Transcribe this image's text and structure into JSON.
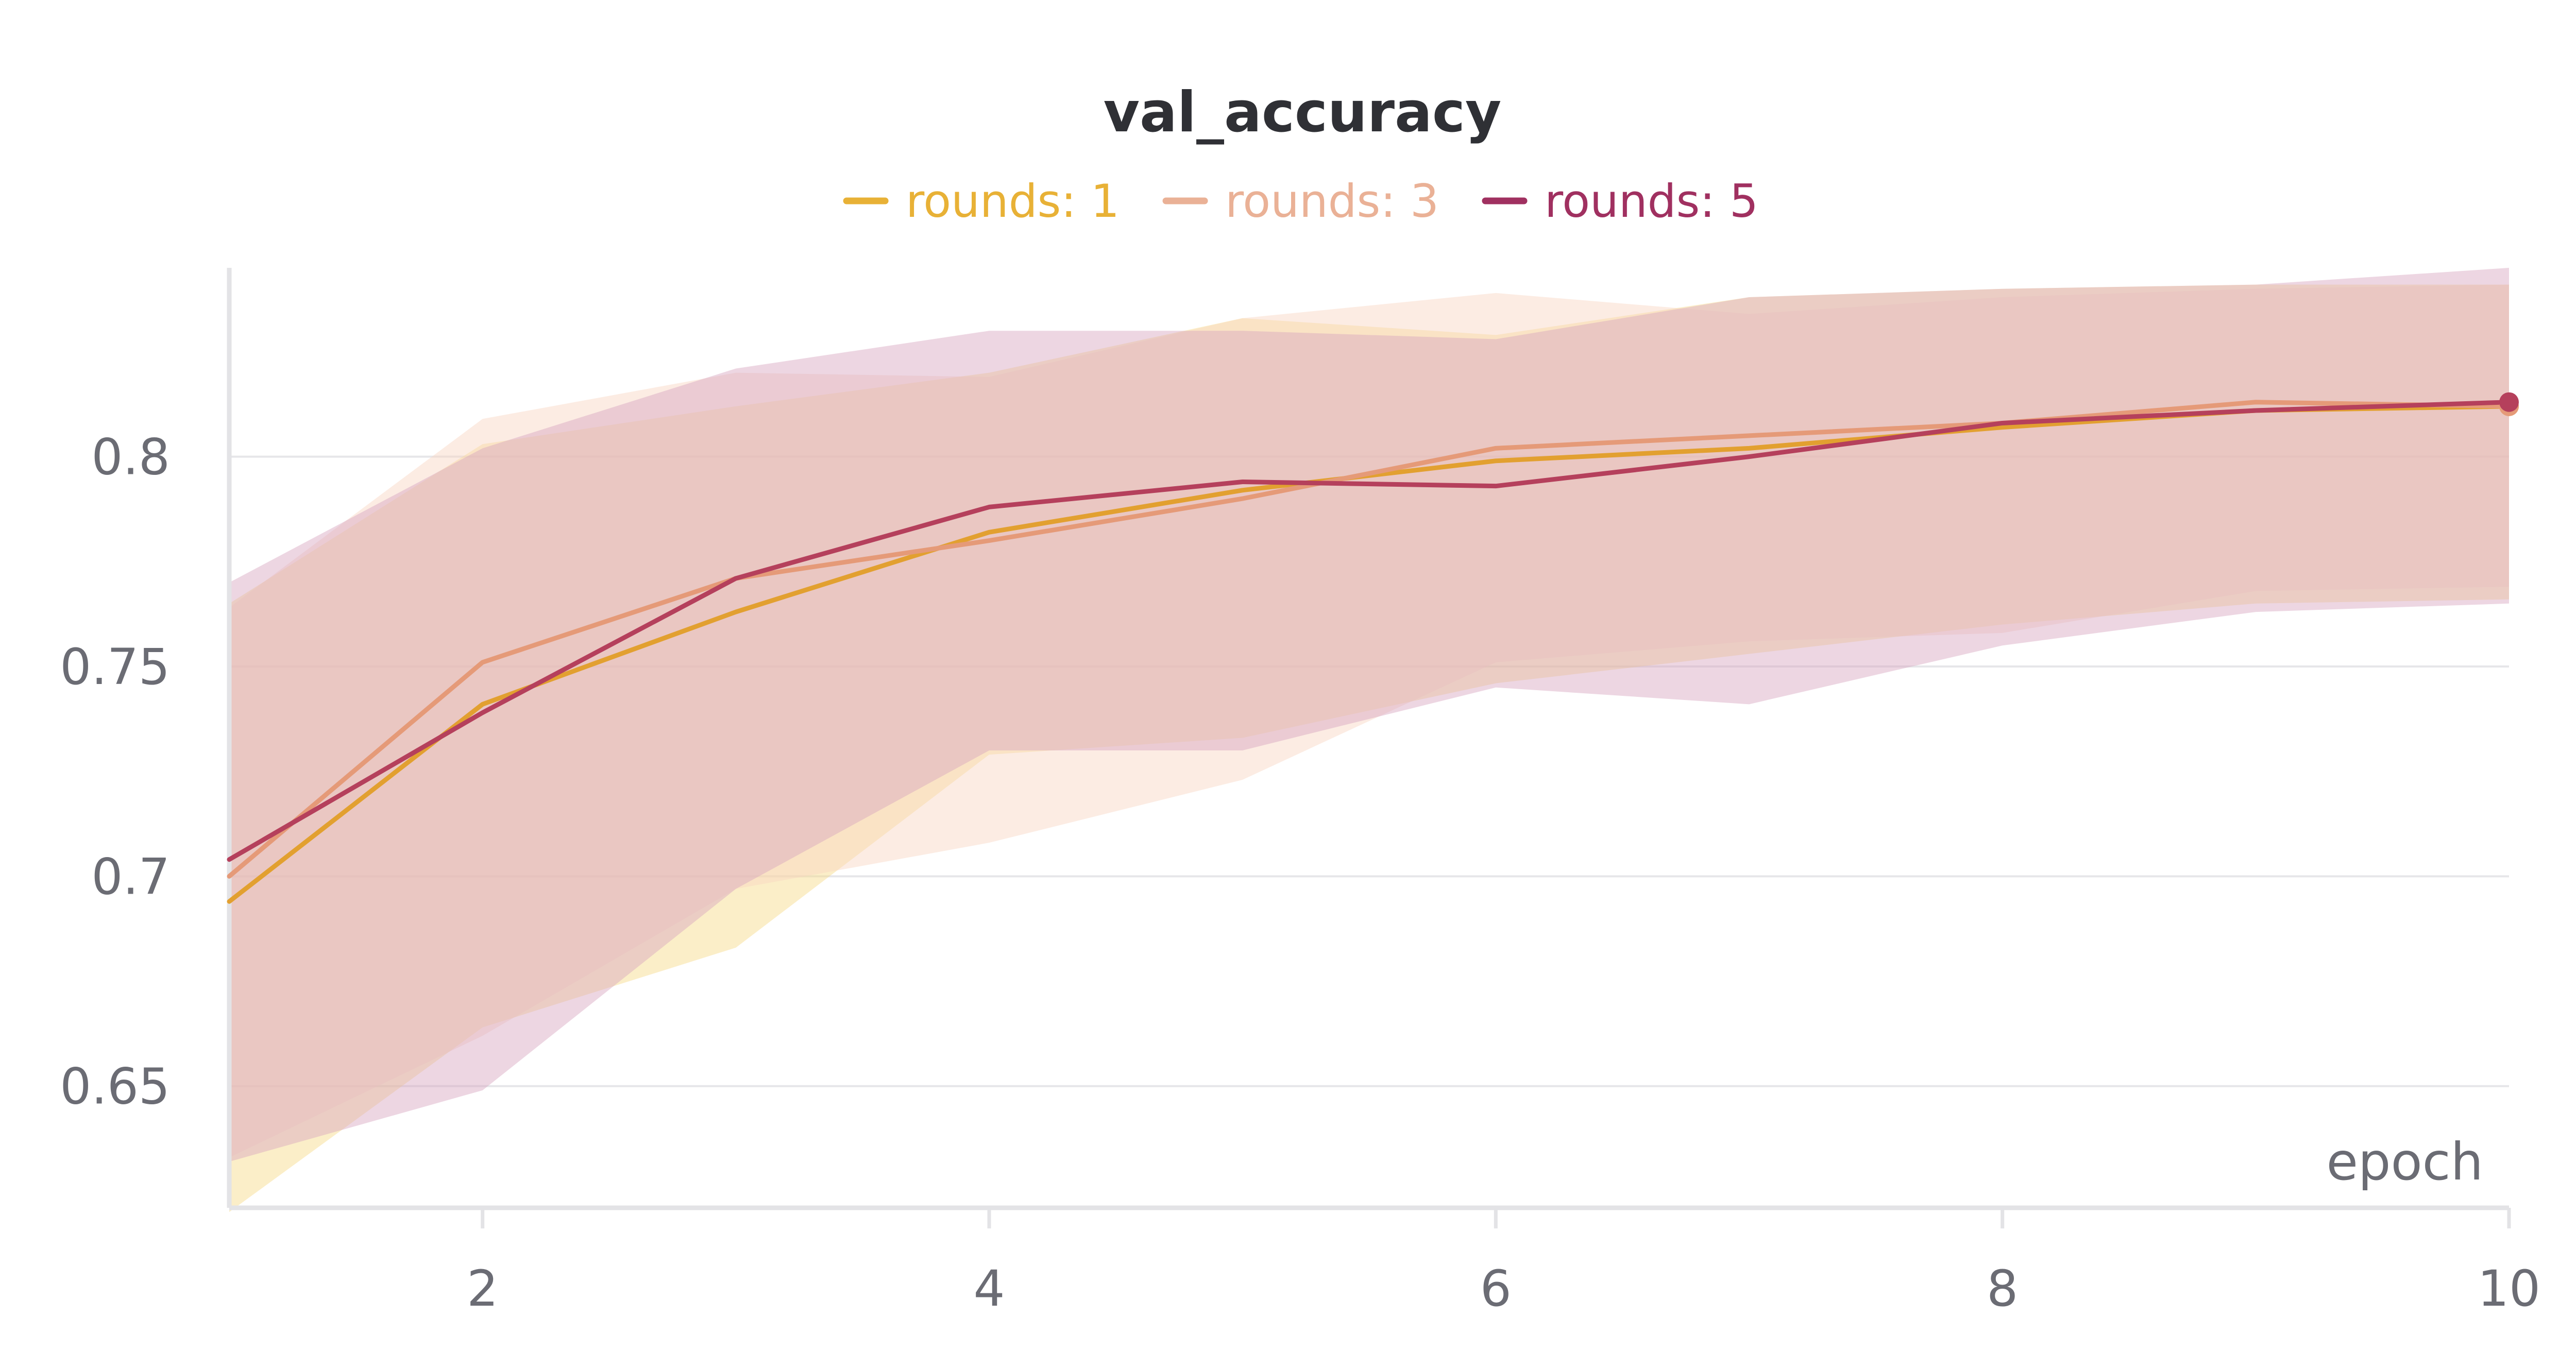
{
  "chart_data": {
    "type": "line",
    "title": "val_accuracy",
    "xlabel": "epoch",
    "ylabel": "",
    "x": [
      1,
      2,
      3,
      4,
      5,
      6,
      7,
      8,
      9,
      10
    ],
    "xlim": [
      1,
      10
    ],
    "ylim": [
      0.621,
      0.845
    ],
    "xticks": [
      2,
      4,
      6,
      8,
      10
    ],
    "xtick_labels": [
      "2",
      "4",
      "6",
      "8",
      "10"
    ],
    "yticks": [
      0.65,
      0.7,
      0.75,
      0.8
    ],
    "ytick_labels": [
      "0.65",
      "0.7",
      "0.75",
      "0.8"
    ],
    "grid": true,
    "legend_position": "top-center",
    "series": [
      {
        "name": "rounds: 1",
        "color": "#e2a030",
        "legend_color": "#e8b136",
        "band_color": "#f7d985",
        "values": [
          0.694,
          0.741,
          0.763,
          0.782,
          0.792,
          0.799,
          0.802,
          0.807,
          0.811,
          0.812
        ],
        "band_low": [
          0.62,
          0.664,
          0.683,
          0.729,
          0.733,
          0.746,
          0.753,
          0.76,
          0.765,
          0.766
        ],
        "band_high": [
          0.765,
          0.803,
          0.812,
          0.82,
          0.833,
          0.829,
          0.838,
          0.84,
          0.841,
          0.841
        ]
      },
      {
        "name": "rounds: 3",
        "color": "#e59a78",
        "legend_color": "#eab196",
        "band_color": "#f8d5c1",
        "values": [
          0.7,
          0.751,
          0.771,
          0.78,
          0.79,
          0.802,
          0.805,
          0.808,
          0.813,
          0.812
        ],
        "band_low": [
          0.633,
          0.662,
          0.697,
          0.708,
          0.723,
          0.751,
          0.756,
          0.758,
          0.768,
          0.769
        ],
        "band_high": [
          0.764,
          0.809,
          0.82,
          0.819,
          0.833,
          0.839,
          0.834,
          0.838,
          0.84,
          0.841
        ]
      },
      {
        "name": "rounds: 5",
        "color": "#b5405c",
        "legend_color": "#a03060",
        "band_color": "#d6a4be",
        "values": [
          0.704,
          0.739,
          0.771,
          0.788,
          0.794,
          0.793,
          0.8,
          0.808,
          0.811,
          0.813
        ],
        "band_low": [
          0.632,
          0.649,
          0.697,
          0.73,
          0.73,
          0.745,
          0.741,
          0.755,
          0.763,
          0.765
        ],
        "band_high": [
          0.77,
          0.802,
          0.821,
          0.83,
          0.83,
          0.828,
          0.838,
          0.84,
          0.841,
          0.845
        ]
      }
    ]
  }
}
